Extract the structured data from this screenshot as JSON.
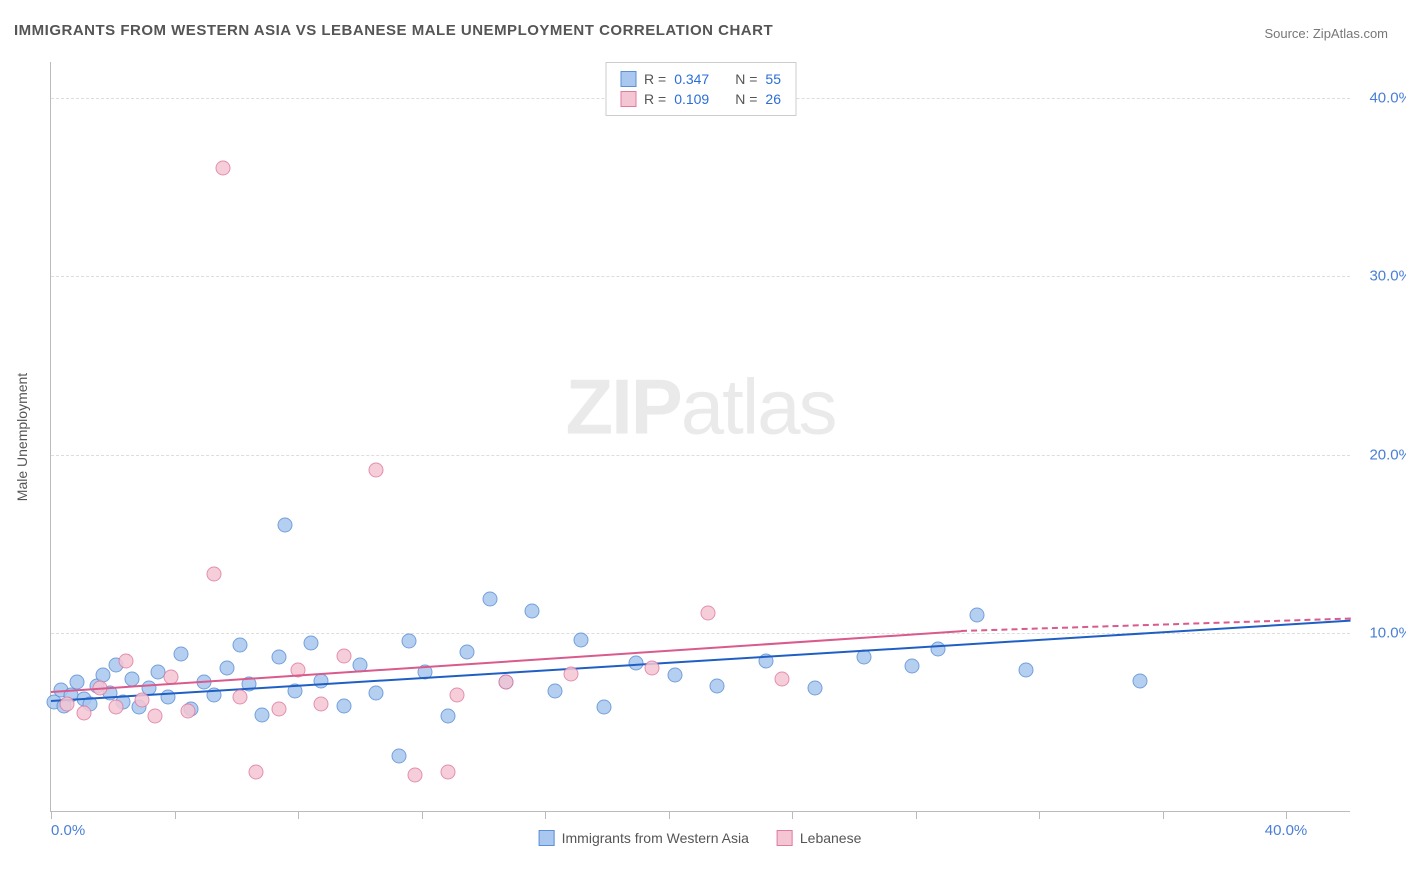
{
  "title": "IMMIGRANTS FROM WESTERN ASIA VS LEBANESE MALE UNEMPLOYMENT CORRELATION CHART",
  "source": "Source: ZipAtlas.com",
  "watermark": {
    "bold": "ZIP",
    "light": "atlas"
  },
  "chart": {
    "type": "scatter",
    "xlim": [
      0,
      40
    ],
    "ylim": [
      0,
      42
    ],
    "x_tick_positions": [
      0,
      3.8,
      7.6,
      11.4,
      15.2,
      19.0,
      22.8,
      26.6,
      30.4,
      34.2,
      38.0
    ],
    "x_tick_labels": {
      "0": "0.0%",
      "38": "40.0%"
    },
    "y_grid": [
      10,
      20,
      30,
      40
    ],
    "y_tick_labels": {
      "10": "10.0%",
      "20": "20.0%",
      "30": "30.0%",
      "40": "40.0%"
    },
    "y_axis_label": "Male Unemployment",
    "background_color": "#ffffff",
    "grid_color": "#dddddd",
    "axis_color": "#bbbbbb",
    "series": [
      {
        "name": "Immigrants from Western Asia",
        "key": "series_a",
        "color_fill": "#a9c7ef",
        "color_stroke": "#5b8fd6",
        "trend_color": "#1f5fc4",
        "trend": {
          "x1": 0,
          "y1": 6.3,
          "x2": 40,
          "y2": 10.8
        },
        "r": "0.347",
        "n": "55",
        "points": [
          [
            0.1,
            6.1
          ],
          [
            0.3,
            6.8
          ],
          [
            0.4,
            5.9
          ],
          [
            0.6,
            6.5
          ],
          [
            0.8,
            7.2
          ],
          [
            1.0,
            6.3
          ],
          [
            1.2,
            6.0
          ],
          [
            1.4,
            7.0
          ],
          [
            1.6,
            7.6
          ],
          [
            1.8,
            6.6
          ],
          [
            2.0,
            8.2
          ],
          [
            2.2,
            6.1
          ],
          [
            2.5,
            7.4
          ],
          [
            2.7,
            5.8
          ],
          [
            3.0,
            6.9
          ],
          [
            3.3,
            7.8
          ],
          [
            3.6,
            6.4
          ],
          [
            4.0,
            8.8
          ],
          [
            4.3,
            5.7
          ],
          [
            4.7,
            7.2
          ],
          [
            5.0,
            6.5
          ],
          [
            5.4,
            8.0
          ],
          [
            5.8,
            9.3
          ],
          [
            6.1,
            7.1
          ],
          [
            6.5,
            5.4
          ],
          [
            7.0,
            8.6
          ],
          [
            7.2,
            16.0
          ],
          [
            7.5,
            6.7
          ],
          [
            8.0,
            9.4
          ],
          [
            8.3,
            7.3
          ],
          [
            9.0,
            5.9
          ],
          [
            9.5,
            8.2
          ],
          [
            10.0,
            6.6
          ],
          [
            10.7,
            3.1
          ],
          [
            11.0,
            9.5
          ],
          [
            11.5,
            7.8
          ],
          [
            12.2,
            5.3
          ],
          [
            12.8,
            8.9
          ],
          [
            13.5,
            11.9
          ],
          [
            14.0,
            7.2
          ],
          [
            14.8,
            11.2
          ],
          [
            15.5,
            6.7
          ],
          [
            16.3,
            9.6
          ],
          [
            17.0,
            5.8
          ],
          [
            18.0,
            8.3
          ],
          [
            19.2,
            7.6
          ],
          [
            20.5,
            7.0
          ],
          [
            22.0,
            8.4
          ],
          [
            23.5,
            6.9
          ],
          [
            25.0,
            8.6
          ],
          [
            26.5,
            8.1
          ],
          [
            28.5,
            11.0
          ],
          [
            30.0,
            7.9
          ],
          [
            33.5,
            7.3
          ],
          [
            27.3,
            9.1
          ]
        ]
      },
      {
        "name": "Lebanese",
        "key": "series_b",
        "color_fill": "#f4c6d4",
        "color_stroke": "#e07ba0",
        "trend_color": "#d95a8c",
        "trend": {
          "x1": 0,
          "y1": 6.8,
          "x2": 28,
          "y2": 10.2
        },
        "trend_dash": {
          "x1": 28,
          "y1": 10.2,
          "x2": 40,
          "y2": 10.9
        },
        "r": "0.109",
        "n": "26",
        "points": [
          [
            0.5,
            6.0
          ],
          [
            1.0,
            5.5
          ],
          [
            1.5,
            6.9
          ],
          [
            2.0,
            5.8
          ],
          [
            2.3,
            8.4
          ],
          [
            2.8,
            6.2
          ],
          [
            3.2,
            5.3
          ],
          [
            3.7,
            7.5
          ],
          [
            4.2,
            5.6
          ],
          [
            5.0,
            13.3
          ],
          [
            5.3,
            36.0
          ],
          [
            5.8,
            6.4
          ],
          [
            6.3,
            2.2
          ],
          [
            7.0,
            5.7
          ],
          [
            7.6,
            7.9
          ],
          [
            8.3,
            6.0
          ],
          [
            9.0,
            8.7
          ],
          [
            10.0,
            19.1
          ],
          [
            11.2,
            2.0
          ],
          [
            12.5,
            6.5
          ],
          [
            14.0,
            7.2
          ],
          [
            16.0,
            7.7
          ],
          [
            18.5,
            8.0
          ],
          [
            20.2,
            11.1
          ],
          [
            22.5,
            7.4
          ],
          [
            12.2,
            2.2
          ]
        ]
      }
    ],
    "legend_bottom": [
      {
        "key": "series_a",
        "label": "Immigrants from Western Asia"
      },
      {
        "key": "series_b",
        "label": "Lebanese"
      }
    ],
    "legend_top_labels": {
      "r": "R =",
      "n": "N ="
    }
  }
}
